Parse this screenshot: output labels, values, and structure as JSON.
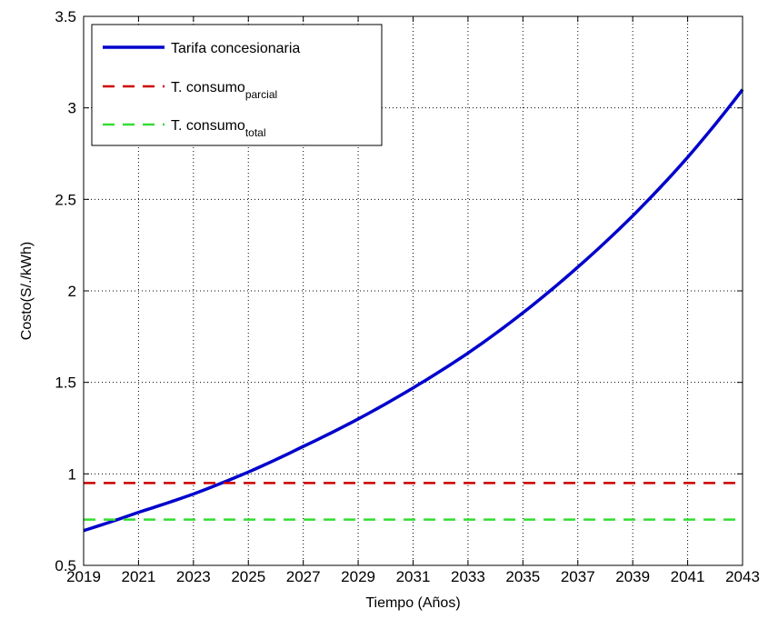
{
  "chart_data": {
    "type": "line",
    "xlabel": "Tiempo (Años)",
    "ylabel": "Costo(S/./kWh)",
    "xlim": [
      2019,
      2043
    ],
    "ylim": [
      0.5,
      3.5
    ],
    "xticks": [
      "2019",
      "2021",
      "2023",
      "2025",
      "2027",
      "2029",
      "2031",
      "2033",
      "2035",
      "2037",
      "2039",
      "2041",
      "2043"
    ],
    "yticks": [
      "0.5",
      "1",
      "1.5",
      "2",
      "2.5",
      "3",
      "3.5"
    ],
    "grid": true,
    "legend_position": "top-left",
    "series": [
      {
        "name": "Tarifa concesionaria",
        "name_sub": "",
        "color": "#0000cc",
        "style": "solid",
        "x": [
          2019,
          2021,
          2023,
          2025,
          2027,
          2029,
          2031,
          2033,
          2035,
          2037,
          2039,
          2041,
          2043
        ],
        "y": [
          0.69,
          0.79,
          0.89,
          1.01,
          1.15,
          1.3,
          1.47,
          1.66,
          1.88,
          2.13,
          2.41,
          2.73,
          3.1
        ]
      },
      {
        "name": "T. consumo",
        "name_sub": "parcial",
        "color": "#cc0000",
        "style": "dashed",
        "x": [
          2019,
          2043
        ],
        "y": [
          0.95,
          0.95
        ]
      },
      {
        "name": "T. consumo",
        "name_sub": "total",
        "color": "#33dd33",
        "style": "dashed",
        "x": [
          2019,
          2043
        ],
        "y": [
          0.75,
          0.75
        ]
      }
    ]
  }
}
